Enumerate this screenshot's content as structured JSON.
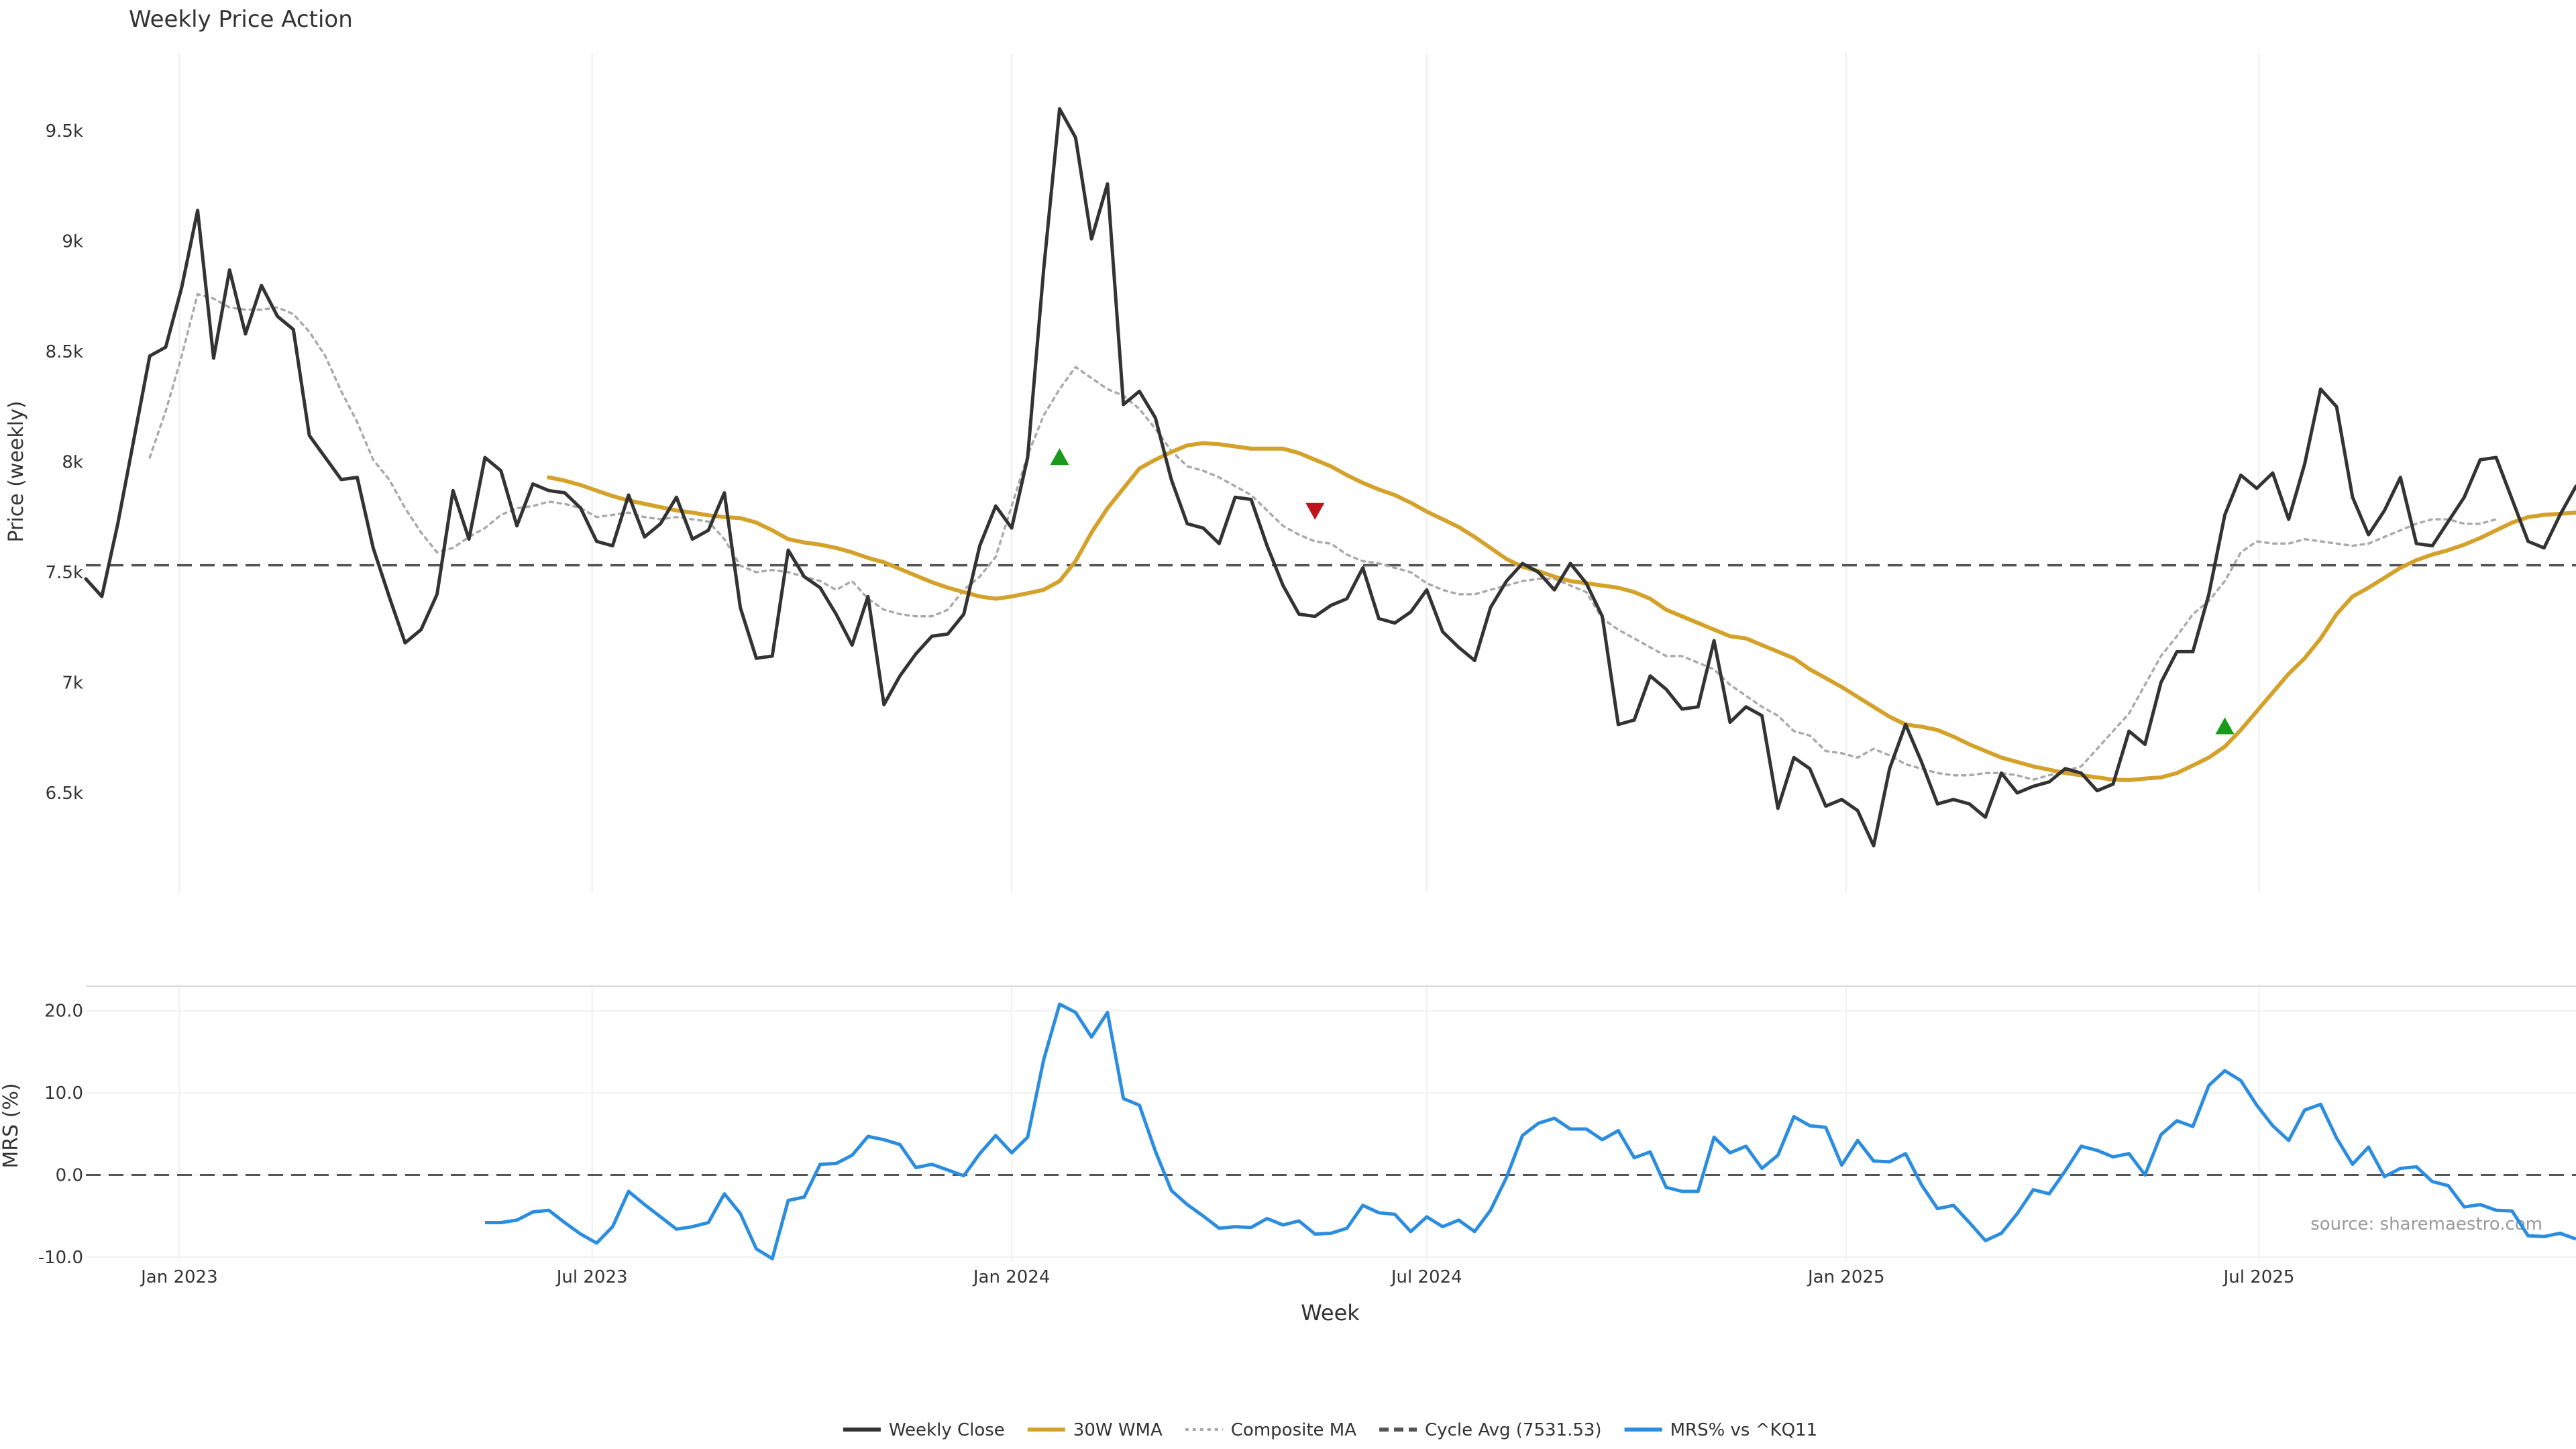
{
  "chart_data": [
    {
      "type": "line",
      "title": "Weekly Price Action",
      "ylabel": "Price (weekly)",
      "ylim": [
        6050,
        9850
      ],
      "ytick_values": [
        6500,
        7000,
        7500,
        8000,
        8500,
        9000,
        9500
      ],
      "ytick_labels": [
        "6.5k",
        "7k",
        "7.5k",
        "8k",
        "8.5k",
        "9k",
        "9.5k"
      ],
      "x_start": "2022-11-21",
      "x_step_days": 7,
      "hline": {
        "name": "Cycle Avg (7531.53)",
        "value": 7531.53
      },
      "series": [
        {
          "name": "Weekly Close",
          "color": "#333333",
          "style": "solid",
          "values": [
            7470,
            7390,
            7720,
            8100,
            8480,
            8520,
            8790,
            9140,
            8470,
            8870,
            8580,
            8800,
            8660,
            8600,
            8120,
            8020,
            7920,
            7930,
            7610,
            7390,
            7180,
            7240,
            7400,
            7870,
            7650,
            8020,
            7960,
            7710,
            7900,
            7870,
            7860,
            7790,
            7640,
            7620,
            7850,
            7660,
            7720,
            7840,
            7650,
            7690,
            7860,
            7340,
            7110,
            7120,
            7600,
            7480,
            7430,
            7310,
            7170,
            7390,
            6900,
            7030,
            7130,
            7210,
            7220,
            7310,
            7620,
            7800,
            7700,
            8020,
            8870,
            9600,
            9470,
            9010,
            9260,
            8260,
            8320,
            8200,
            7920,
            7720,
            7700,
            7630,
            7840,
            7830,
            7620,
            7440,
            7310,
            7300,
            7350,
            7380,
            7520,
            7290,
            7270,
            7320,
            7420,
            7230,
            7160,
            7100,
            7340,
            7460,
            7540,
            7500,
            7420,
            7540,
            7450,
            7300,
            6810,
            6830,
            7030,
            6970,
            6880,
            6890,
            7190,
            6820,
            6890,
            6850,
            6430,
            6660,
            6610,
            6440,
            6470,
            6420,
            6260,
            6610,
            6810,
            6640,
            6450,
            6470,
            6450,
            6390,
            6590,
            6500,
            6530,
            6550,
            6610,
            6590,
            6510,
            6540,
            6780,
            6720,
            7000,
            7140,
            7140,
            7400,
            7760,
            7940,
            7880,
            7950,
            7740,
            7990,
            8330,
            8250,
            7840,
            7670,
            7780,
            7930,
            7630,
            7620,
            7730,
            7840,
            8010,
            8020,
            7830,
            7640,
            7610,
            7760,
            7890
          ]
        },
        {
          "name": "30W WMA",
          "color": "#d4a22a",
          "style": "solid",
          "start_index": 29,
          "values": [
            7930,
            7915,
            7895,
            7870,
            7845,
            7825,
            7810,
            7795,
            7780,
            7770,
            7758,
            7750,
            7745,
            7725,
            7690,
            7650,
            7635,
            7625,
            7610,
            7590,
            7565,
            7545,
            7515,
            7485,
            7455,
            7430,
            7410,
            7390,
            7380,
            7390,
            7405,
            7420,
            7460,
            7550,
            7680,
            7790,
            7880,
            7970,
            8010,
            8045,
            8075,
            8085,
            8080,
            8070,
            8060,
            8060,
            8060,
            8040,
            8010,
            7980,
            7940,
            7905,
            7875,
            7850,
            7815,
            7775,
            7740,
            7705,
            7660,
            7610,
            7560,
            7525,
            7505,
            7480,
            7460,
            7450,
            7440,
            7430,
            7410,
            7380,
            7330,
            7300,
            7270,
            7240,
            7210,
            7200,
            7170,
            7140,
            7110,
            7060,
            7020,
            6980,
            6935,
            6890,
            6845,
            6810,
            6800,
            6785,
            6755,
            6720,
            6690,
            6660,
            6640,
            6620,
            6605,
            6590,
            6580,
            6570,
            6560,
            6558,
            6565,
            6570,
            6590,
            6625,
            6660,
            6710,
            6785,
            6870,
            6955,
            7040,
            7110,
            7200,
            7310,
            7390,
            7430,
            7475,
            7520,
            7555,
            7580,
            7600,
            7625,
            7655,
            7690,
            7725,
            7750,
            7760,
            7765,
            7770
          ]
        },
        {
          "name": "Composite MA",
          "color": "#aaaaaa",
          "style": "dotted",
          "start_index": 4,
          "values": [
            8020,
            8230,
            8480,
            8760,
            8740,
            8700,
            8690,
            8690,
            8700,
            8670,
            8590,
            8480,
            8320,
            8180,
            8010,
            7920,
            7790,
            7680,
            7590,
            7610,
            7660,
            7700,
            7760,
            7790,
            7800,
            7820,
            7810,
            7790,
            7750,
            7760,
            7770,
            7750,
            7740,
            7750,
            7740,
            7730,
            7650,
            7530,
            7500,
            7510,
            7500,
            7480,
            7460,
            7420,
            7460,
            7380,
            7330,
            7310,
            7300,
            7300,
            7330,
            7420,
            7480,
            7570,
            7800,
            8030,
            8210,
            8330,
            8430,
            8380,
            8330,
            8300,
            8240,
            8150,
            8050,
            7980,
            7960,
            7930,
            7890,
            7850,
            7780,
            7710,
            7670,
            7640,
            7630,
            7580,
            7550,
            7540,
            7520,
            7500,
            7450,
            7420,
            7400,
            7400,
            7420,
            7440,
            7460,
            7470,
            7470,
            7440,
            7410,
            7290,
            7240,
            7200,
            7160,
            7120,
            7120,
            7090,
            7060,
            6990,
            6940,
            6890,
            6850,
            6780,
            6760,
            6690,
            6680,
            6660,
            6700,
            6670,
            6630,
            6610,
            6590,
            6580,
            6580,
            6590,
            6590,
            6580,
            6560,
            6580,
            6600,
            6620,
            6700,
            6780,
            6860,
            6990,
            7120,
            7210,
            7310,
            7370,
            7460,
            7590,
            7640,
            7630,
            7630,
            7650,
            7640,
            7630,
            7620,
            7630,
            7660,
            7690,
            7720,
            7740,
            7740,
            7720,
            7720,
            7740
          ]
        }
      ],
      "markers": [
        {
          "name": "buy-signal",
          "shape": "triangle-up",
          "color": "#1a9a1a",
          "index": 61,
          "value": 8020
        },
        {
          "name": "sell-signal",
          "shape": "triangle-down",
          "color": "#c0141c",
          "index": 77,
          "value": 7780
        },
        {
          "name": "buy-signal",
          "shape": "triangle-up",
          "color": "#1a9a1a",
          "index": 134,
          "value": 6800
        }
      ]
    },
    {
      "type": "line",
      "ylabel": "MRS (%)",
      "ylim": [
        -10.5,
        23
      ],
      "ytick_values": [
        -10,
        0,
        10,
        20
      ],
      "ytick_labels": [
        "-10.0",
        "0.0",
        "10.0",
        "20.0"
      ],
      "xlabel": "Week",
      "xtick_labels": [
        "Jan 2023",
        "Jul 2023",
        "Jan 2024",
        "Jul 2024",
        "Jan 2025",
        "Jul 2025"
      ],
      "xtick_dates": [
        "2023-01-01",
        "2023-07-01",
        "2024-01-01",
        "2024-07-01",
        "2025-01-01",
        "2025-07-01"
      ],
      "hline": {
        "value": 0
      },
      "series": [
        {
          "name": "MRS% vs ^KQ11",
          "color": "#2b8de0",
          "style": "solid",
          "start_index": 25,
          "values": [
            -5.8,
            -5.8,
            -5.5,
            -4.5,
            -4.3,
            -5.8,
            -7.2,
            -8.3,
            -6.3,
            -2.0,
            -3.6,
            -5.1,
            -6.6,
            -6.3,
            -5.8,
            -2.3,
            -4.7,
            -9.0,
            -10.2,
            -3.1,
            -2.7,
            1.3,
            1.4,
            2.4,
            4.7,
            4.3,
            3.7,
            0.9,
            1.3,
            0.6,
            -0.1,
            2.6,
            4.8,
            2.7,
            4.6,
            14.0,
            20.8,
            19.8,
            16.8,
            19.8,
            9.3,
            8.5,
            2.9,
            -1.9,
            -3.6,
            -5.0,
            -6.5,
            -6.3,
            -6.4,
            -5.3,
            -6.1,
            -5.6,
            -7.2,
            -7.1,
            -6.5,
            -3.7,
            -4.6,
            -4.8,
            -6.9,
            -5.1,
            -6.3,
            -5.5,
            -6.9,
            -4.3,
            -0.3,
            4.8,
            6.3,
            6.9,
            5.6,
            5.6,
            4.3,
            5.4,
            2.1,
            2.8,
            -1.5,
            -2.0,
            -2.0,
            4.6,
            2.7,
            3.5,
            0.8,
            2.4,
            7.1,
            6.0,
            5.8,
            1.2,
            4.2,
            1.7,
            1.6,
            2.6,
            -1.2,
            -4.1,
            -3.7,
            -5.8,
            -8.0,
            -7.1,
            -4.7,
            -1.8,
            -2.3,
            0.5,
            3.5,
            3.0,
            2.2,
            2.6,
            0.0,
            4.9,
            6.6,
            5.9,
            10.9,
            12.7,
            11.5,
            8.5,
            6.0,
            4.2,
            7.9,
            8.6,
            4.5,
            1.3,
            3.4,
            -0.2,
            0.8,
            1.0,
            -0.8,
            -1.3,
            -3.9,
            -3.6,
            -4.3,
            -4.4,
            -7.4,
            -7.5,
            -7.1,
            -7.8
          ]
        }
      ]
    }
  ],
  "legend": {
    "entries": [
      {
        "label": "Weekly Close",
        "color": "#333333",
        "style": "solid"
      },
      {
        "label": "30W WMA",
        "color": "#d4a22a",
        "style": "solid"
      },
      {
        "label": "Composite MA",
        "color": "#aaaaaa",
        "style": "dotted"
      },
      {
        "label": "Cycle Avg (7531.53)",
        "color": "#555555",
        "style": "dashed"
      },
      {
        "label": "MRS% vs ^KQ11",
        "color": "#2b8de0",
        "style": "solid"
      }
    ]
  },
  "source_text": "source: sharemaestro.com"
}
